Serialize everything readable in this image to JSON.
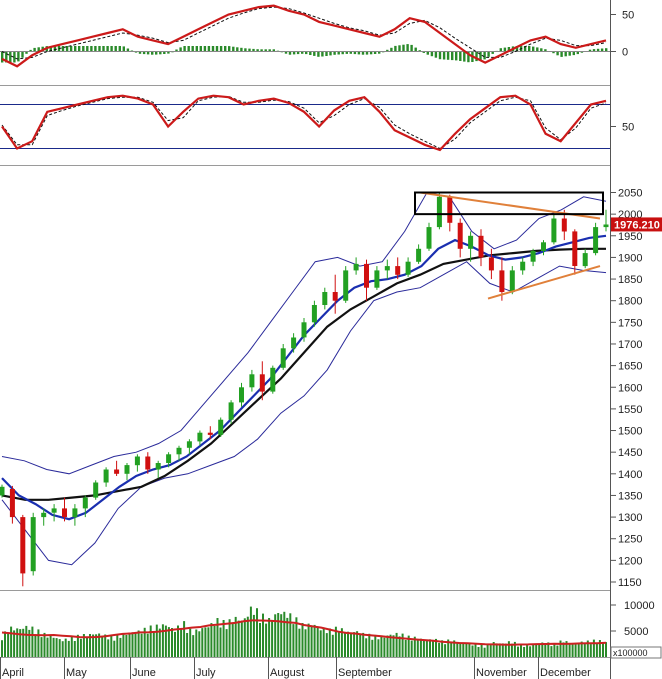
{
  "colors": {
    "up": "#22a022",
    "down": "#d01010",
    "ma_short": "#1a2fb0",
    "ma_long": "#111111",
    "bands": "#2a2a9a",
    "trend": "#e0803a",
    "osc_line": "#cc1a1a",
    "volume": "#2a8a2a",
    "volume_ma": "#cc2020",
    "ref_line": "#1a2a8a",
    "grid": "#888888",
    "price_badge": "#c81010"
  },
  "chart_data": [
    {
      "type": "line",
      "panel": "macd",
      "series": [
        {
          "values": [
            -10,
            -20,
            -5,
            5,
            10,
            15,
            20,
            25,
            30,
            20,
            15,
            10,
            20,
            30,
            40,
            50,
            55,
            60,
            62,
            55,
            50,
            40,
            35,
            30,
            25,
            20,
            30,
            45,
            40,
            25,
            10,
            -5,
            -15,
            -5,
            5,
            15,
            20,
            10,
            5,
            10,
            15
          ]
        },
        {
          "values": [
            0,
            -10,
            -8,
            0,
            5,
            10,
            15,
            20,
            25,
            22,
            18,
            12,
            15,
            25,
            35,
            45,
            52,
            58,
            60,
            58,
            52,
            45,
            38,
            32,
            28,
            22,
            25,
            38,
            42,
            32,
            18,
            5,
            -8,
            -8,
            0,
            10,
            18,
            15,
            8,
            8,
            12
          ]
        }
      ],
      "yticks": [
        0,
        50
      ]
    },
    {
      "type": "line",
      "panel": "stochastic",
      "series": [
        {
          "values": [
            50,
            20,
            30,
            70,
            75,
            80,
            85,
            90,
            92,
            88,
            80,
            50,
            70,
            88,
            92,
            90,
            80,
            85,
            88,
            82,
            70,
            50,
            72,
            85,
            90,
            70,
            45,
            35,
            25,
            18,
            40,
            60,
            75,
            90,
            92,
            80,
            40,
            30,
            55,
            80,
            85
          ]
        },
        {
          "values": [
            52,
            25,
            25,
            65,
            72,
            78,
            83,
            88,
            90,
            90,
            83,
            58,
            62,
            85,
            90,
            91,
            83,
            83,
            86,
            84,
            75,
            55,
            65,
            80,
            88,
            76,
            52,
            40,
            30,
            20,
            33,
            55,
            70,
            85,
            90,
            85,
            48,
            32,
            48,
            75,
            82
          ]
        }
      ],
      "ref_lines": [
        80,
        20
      ],
      "yticks": [
        50
      ]
    },
    {
      "type": "candlestick",
      "panel": "price",
      "last_price": "1976.210",
      "ylim": [
        1140,
        2080
      ],
      "yticks": [
        1150,
        1200,
        1250,
        1300,
        1350,
        1400,
        1450,
        1500,
        1550,
        1600,
        1650,
        1700,
        1750,
        1800,
        1850,
        1900,
        1950,
        2000,
        2050
      ],
      "candles": [
        [
          1350,
          1375,
          1345,
          1370
        ],
        [
          1365,
          1372,
          1285,
          1300
        ],
        [
          1300,
          1305,
          1140,
          1170
        ],
        [
          1175,
          1310,
          1165,
          1300
        ],
        [
          1300,
          1320,
          1280,
          1310
        ],
        [
          1310,
          1330,
          1290,
          1320
        ],
        [
          1320,
          1345,
          1290,
          1300
        ],
        [
          1300,
          1330,
          1280,
          1320
        ],
        [
          1320,
          1350,
          1300,
          1345
        ],
        [
          1345,
          1385,
          1340,
          1380
        ],
        [
          1380,
          1415,
          1370,
          1410
        ],
        [
          1410,
          1430,
          1395,
          1400
        ],
        [
          1400,
          1425,
          1385,
          1420
        ],
        [
          1420,
          1445,
          1405,
          1440
        ],
        [
          1440,
          1450,
          1400,
          1410
        ],
        [
          1410,
          1430,
          1390,
          1425
        ],
        [
          1425,
          1450,
          1415,
          1445
        ],
        [
          1445,
          1465,
          1430,
          1460
        ],
        [
          1460,
          1480,
          1445,
          1475
        ],
        [
          1475,
          1500,
          1465,
          1495
        ],
        [
          1495,
          1510,
          1480,
          1490
        ],
        [
          1490,
          1530,
          1485,
          1525
        ],
        [
          1525,
          1570,
          1515,
          1565
        ],
        [
          1565,
          1610,
          1555,
          1600
        ],
        [
          1600,
          1640,
          1590,
          1630
        ],
        [
          1630,
          1660,
          1570,
          1590
        ],
        [
          1590,
          1650,
          1585,
          1645
        ],
        [
          1645,
          1700,
          1640,
          1690
        ],
        [
          1690,
          1725,
          1680,
          1715
        ],
        [
          1715,
          1760,
          1705,
          1750
        ],
        [
          1750,
          1800,
          1740,
          1790
        ],
        [
          1790,
          1830,
          1780,
          1820
        ],
        [
          1820,
          1860,
          1770,
          1800
        ],
        [
          1800,
          1880,
          1795,
          1870
        ],
        [
          1870,
          1900,
          1860,
          1885
        ],
        [
          1885,
          1895,
          1800,
          1830
        ],
        [
          1830,
          1880,
          1825,
          1870
        ],
        [
          1870,
          1895,
          1850,
          1880
        ],
        [
          1880,
          1900,
          1850,
          1860
        ],
        [
          1860,
          1900,
          1855,
          1890
        ],
        [
          1890,
          1930,
          1885,
          1920
        ],
        [
          1920,
          1980,
          1915,
          1970
        ],
        [
          1970,
          2050,
          1965,
          2040
        ],
        [
          2040,
          2045,
          1960,
          1980
        ],
        [
          1980,
          1990,
          1900,
          1920
        ],
        [
          1920,
          1960,
          1890,
          1950
        ],
        [
          1950,
          1965,
          1880,
          1900
        ],
        [
          1900,
          1920,
          1850,
          1870
        ],
        [
          1870,
          1900,
          1800,
          1820
        ],
        [
          1820,
          1880,
          1815,
          1870
        ],
        [
          1870,
          1900,
          1860,
          1890
        ],
        [
          1890,
          1920,
          1880,
          1915
        ],
        [
          1915,
          1940,
          1905,
          1935
        ],
        [
          1935,
          2000,
          1930,
          1990
        ],
        [
          1990,
          2010,
          1940,
          1960
        ],
        [
          1960,
          1965,
          1860,
          1880
        ],
        [
          1880,
          1920,
          1875,
          1910
        ],
        [
          1910,
          1980,
          1905,
          1970
        ],
        [
          1970,
          2010,
          1960,
          1976
        ]
      ]
    },
    {
      "type": "line",
      "panel": "price-overlays",
      "series": [
        {
          "values": [
            1390,
            1350,
            1330,
            1305,
            1295,
            1310,
            1340,
            1370,
            1395,
            1410,
            1420,
            1440,
            1470,
            1500,
            1540,
            1580,
            1620,
            1670,
            1720,
            1760,
            1800,
            1830,
            1845,
            1850,
            1860,
            1880,
            1920,
            1940,
            1925,
            1905,
            1895,
            1900,
            1910,
            1925,
            1935,
            1945,
            1950
          ]
        },
        {
          "values": [
            1350,
            1340,
            1340,
            1345,
            1350,
            1360,
            1370,
            1395,
            1430,
            1470,
            1520,
            1570,
            1620,
            1680,
            1740,
            1780,
            1810,
            1840,
            1860,
            1885,
            1895,
            1905,
            1910,
            1915,
            1918,
            1920,
            1920
          ]
        },
        {
          "values": [
            1440,
            1430,
            1410,
            1400,
            1420,
            1440,
            1450,
            1470,
            1500,
            1560,
            1620,
            1680,
            1750,
            1820,
            1890,
            1900,
            1880,
            1890,
            1960,
            2050,
            2040,
            1960,
            1920,
            1940,
            1990,
            2010,
            2040,
            2030
          ]
        },
        {
          "values": [
            1340,
            1270,
            1200,
            1190,
            1240,
            1320,
            1370,
            1390,
            1400,
            1420,
            1440,
            1480,
            1540,
            1580,
            1640,
            1730,
            1800,
            1820,
            1830,
            1860,
            1890,
            1840,
            1820,
            1850,
            1880,
            1870,
            1865
          ]
        }
      ],
      "annotations": {
        "upper_trendline": [
          2050,
          1990
        ],
        "lower_trendline": [
          1805,
          1880
        ],
        "resistance_box": [
          2000,
          2050
        ]
      }
    },
    {
      "type": "bar",
      "panel": "volume",
      "values": [
        38,
        52,
        50,
        55,
        48,
        40,
        36,
        30,
        34,
        38,
        40,
        42,
        38,
        36,
        40,
        44,
        46,
        52,
        55,
        58,
        48,
        62,
        44,
        50,
        56,
        66,
        60,
        70,
        65,
        90,
        75,
        66,
        80,
        78,
        68,
        55,
        60,
        50,
        48,
        52,
        44,
        46,
        40,
        38,
        35,
        40,
        42,
        36,
        34,
        30,
        32,
        28,
        30,
        26,
        24,
        22,
        20,
        26,
        24,
        28,
        22,
        20,
        24,
        26,
        22,
        30,
        24,
        26,
        28,
        30,
        26
      ],
      "scale_label": "x100000",
      "yticks": [
        5000,
        10000
      ]
    }
  ],
  "x_axis": {
    "months": [
      "April",
      "May",
      "June",
      "July",
      "August",
      "September",
      "November",
      "December"
    ]
  }
}
